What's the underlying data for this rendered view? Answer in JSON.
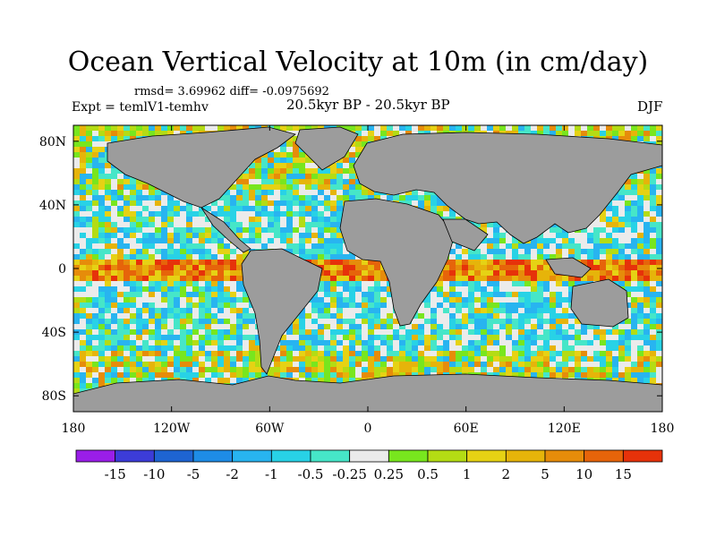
{
  "title": "Ocean Vertical Velocity at 10m (in cm/day)",
  "stats_text": "rmsd= 3.69962 diff= -0.0975692",
  "expt_text": "Expt = temlV1-temhv",
  "period_text": "20.5kyr BP - 20.5kyr BP",
  "season_text": "DJF",
  "chart_data": {
    "type": "heatmap",
    "title": "Ocean Vertical Velocity at 10m (in cm/day)",
    "x_ticks": [
      "180",
      "120W",
      "60W",
      "0",
      "60E",
      "120E",
      "180"
    ],
    "x_tick_values": [
      -180,
      -120,
      -60,
      0,
      60,
      120,
      180
    ],
    "y_ticks": [
      "80N",
      "40N",
      "0",
      "40S",
      "80S"
    ],
    "y_tick_values": [
      80,
      40,
      0,
      -40,
      -80
    ],
    "xlim": [
      -180,
      180
    ],
    "ylim": [
      -90,
      90
    ],
    "land_color": "#9c9c9c",
    "colorbar": {
      "labels": [
        "-15",
        "-10",
        "-5",
        "-2",
        "-1",
        "-0.5",
        "-0.25",
        "0.25",
        "0.5",
        "1",
        "2",
        "5",
        "10",
        "15"
      ],
      "colors": [
        "#9a1ee8",
        "#3c3cd8",
        "#1e64d2",
        "#1e8ce6",
        "#28b4f0",
        "#28d2e6",
        "#46e6c8",
        "#ebebeb",
        "#78e61e",
        "#b4dc14",
        "#e6d214",
        "#e6b40a",
        "#e68c0a",
        "#e6640a",
        "#e6320a"
      ]
    }
  }
}
